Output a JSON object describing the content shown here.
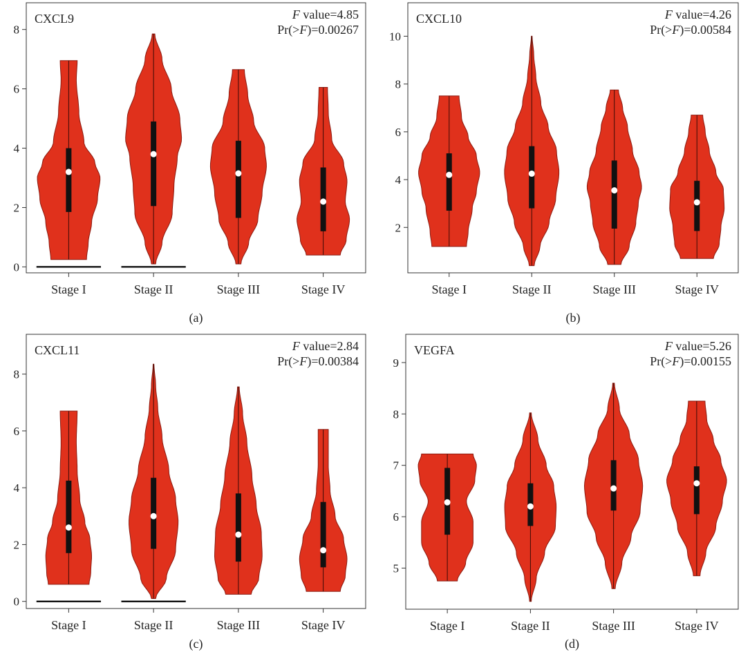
{
  "colors": {
    "violin_fill": "#e0311c",
    "violin_stroke": "#8a1a10",
    "box": "#111111",
    "median": "#ffffff"
  },
  "chart_data": [
    {
      "type": "violin",
      "gene": "CXCL9",
      "f_label": "F",
      "f_text": " value=4.85",
      "p_pre": "Pr(>",
      "p_var": "F",
      "p_post": ")=0.00267",
      "caption": "(a)",
      "categories": [
        "Stage I",
        "Stage II",
        "Stage III",
        "Stage IV"
      ],
      "yticks": [
        0,
        2,
        4,
        6,
        8
      ],
      "ylim": [
        -0.2,
        8.9
      ],
      "zero_lines": [
        true,
        true,
        false,
        false
      ],
      "violins": [
        {
          "min": 0.25,
          "q1": 1.85,
          "median": 3.2,
          "q3": 4.0,
          "max": 6.95,
          "density": [
            [
              0.25,
              0.42
            ],
            [
              0.8,
              0.46
            ],
            [
              1.5,
              0.54
            ],
            [
              2.3,
              0.68
            ],
            [
              3.0,
              0.74
            ],
            [
              3.5,
              0.62
            ],
            [
              4.2,
              0.36
            ],
            [
              5.2,
              0.24
            ],
            [
              6.3,
              0.18
            ],
            [
              6.95,
              0.2
            ]
          ]
        },
        {
          "min": 0.1,
          "q1": 2.05,
          "median": 3.8,
          "q3": 4.9,
          "max": 7.85,
          "density": [
            [
              0.1,
              0.05
            ],
            [
              0.8,
              0.2
            ],
            [
              1.8,
              0.44
            ],
            [
              2.7,
              0.48
            ],
            [
              3.7,
              0.56
            ],
            [
              4.3,
              0.66
            ],
            [
              5.0,
              0.62
            ],
            [
              6.0,
              0.42
            ],
            [
              7.0,
              0.2
            ],
            [
              7.85,
              0.03
            ]
          ]
        },
        {
          "min": 0.1,
          "q1": 1.65,
          "median": 3.15,
          "q3": 4.25,
          "max": 6.65,
          "density": [
            [
              0.1,
              0.06
            ],
            [
              0.8,
              0.24
            ],
            [
              1.6,
              0.46
            ],
            [
              2.5,
              0.56
            ],
            [
              3.4,
              0.66
            ],
            [
              4.0,
              0.62
            ],
            [
              4.9,
              0.36
            ],
            [
              5.8,
              0.22
            ],
            [
              6.65,
              0.14
            ]
          ]
        },
        {
          "min": 0.4,
          "q1": 1.2,
          "median": 2.2,
          "q3": 3.35,
          "max": 6.05,
          "density": [
            [
              0.4,
              0.4
            ],
            [
              0.9,
              0.54
            ],
            [
              1.6,
              0.62
            ],
            [
              2.2,
              0.52
            ],
            [
              2.9,
              0.56
            ],
            [
              3.5,
              0.48
            ],
            [
              4.3,
              0.2
            ],
            [
              5.2,
              0.12
            ],
            [
              6.05,
              0.1
            ]
          ]
        }
      ]
    },
    {
      "type": "violin",
      "gene": "CXCL10",
      "f_label": "F",
      "f_text": " value=4.26",
      "p_pre": "Pr(>",
      "p_var": "F",
      "p_post": ")=0.00584",
      "caption": "(b)",
      "categories": [
        "Stage I",
        "Stage II",
        "Stage III",
        "Stage IV"
      ],
      "yticks": [
        2,
        4,
        6,
        8,
        10
      ],
      "ylim": [
        0.1,
        11.4
      ],
      "zero_lines": [
        false,
        false,
        false,
        false
      ],
      "violins": [
        {
          "min": 1.2,
          "q1": 2.7,
          "median": 4.2,
          "q3": 5.1,
          "max": 7.5,
          "density": [
            [
              1.2,
              0.42
            ],
            [
              1.8,
              0.46
            ],
            [
              2.8,
              0.56
            ],
            [
              3.5,
              0.66
            ],
            [
              4.3,
              0.74
            ],
            [
              5.0,
              0.66
            ],
            [
              5.8,
              0.46
            ],
            [
              6.6,
              0.3
            ],
            [
              7.5,
              0.24
            ]
          ]
        },
        {
          "min": 0.4,
          "q1": 2.8,
          "median": 4.25,
          "q3": 5.4,
          "max": 10.0,
          "density": [
            [
              0.4,
              0.06
            ],
            [
              1.2,
              0.2
            ],
            [
              2.2,
              0.42
            ],
            [
              3.2,
              0.58
            ],
            [
              4.3,
              0.66
            ],
            [
              5.2,
              0.6
            ],
            [
              6.2,
              0.4
            ],
            [
              7.2,
              0.22
            ],
            [
              8.3,
              0.1
            ],
            [
              9.2,
              0.05
            ],
            [
              10.0,
              0.01
            ]
          ]
        },
        {
          "min": 0.45,
          "q1": 1.95,
          "median": 3.55,
          "q3": 4.8,
          "max": 7.75,
          "density": [
            [
              0.45,
              0.16
            ],
            [
              1.2,
              0.36
            ],
            [
              2.2,
              0.52
            ],
            [
              3.0,
              0.58
            ],
            [
              3.7,
              0.66
            ],
            [
              4.3,
              0.6
            ],
            [
              5.2,
              0.44
            ],
            [
              6.2,
              0.32
            ],
            [
              7.0,
              0.2
            ],
            [
              7.75,
              0.1
            ]
          ]
        },
        {
          "min": 0.7,
          "q1": 1.85,
          "median": 3.05,
          "q3": 3.95,
          "max": 6.7,
          "density": [
            [
              0.7,
              0.4
            ],
            [
              1.3,
              0.54
            ],
            [
              2.0,
              0.58
            ],
            [
              2.8,
              0.66
            ],
            [
              3.6,
              0.64
            ],
            [
              4.3,
              0.46
            ],
            [
              5.2,
              0.3
            ],
            [
              6.0,
              0.2
            ],
            [
              6.7,
              0.14
            ]
          ]
        }
      ]
    },
    {
      "type": "violin",
      "gene": "CXCL11",
      "f_label": "F",
      "f_text": " value=2.84",
      "p_pre": "Pr(>",
      "p_var": "F",
      "p_post": ")=0.00384",
      "caption": "(c)",
      "categories": [
        "Stage I",
        "Stage II",
        "Stage III",
        "Stage IV"
      ],
      "yticks": [
        0,
        2,
        4,
        6,
        8
      ],
      "ylim": [
        -0.25,
        9.4
      ],
      "zero_lines": [
        true,
        true,
        false,
        false
      ],
      "violins": [
        {
          "min": 0.6,
          "q1": 1.7,
          "median": 2.6,
          "q3": 4.25,
          "max": 6.7,
          "density": [
            [
              0.6,
              0.48
            ],
            [
              1.0,
              0.52
            ],
            [
              1.6,
              0.54
            ],
            [
              2.2,
              0.5
            ],
            [
              2.8,
              0.38
            ],
            [
              3.6,
              0.26
            ],
            [
              4.6,
              0.2
            ],
            [
              5.6,
              0.18
            ],
            [
              6.7,
              0.2
            ]
          ]
        },
        {
          "min": 0.1,
          "q1": 1.85,
          "median": 3.0,
          "q3": 4.35,
          "max": 8.35,
          "density": [
            [
              0.1,
              0.05
            ],
            [
              0.8,
              0.3
            ],
            [
              1.8,
              0.52
            ],
            [
              2.8,
              0.58
            ],
            [
              3.6,
              0.52
            ],
            [
              4.6,
              0.36
            ],
            [
              5.8,
              0.2
            ],
            [
              6.8,
              0.1
            ],
            [
              7.6,
              0.05
            ],
            [
              8.35,
              0.01
            ]
          ]
        },
        {
          "min": 0.25,
          "q1": 1.4,
          "median": 2.35,
          "q3": 3.8,
          "max": 7.55,
          "density": [
            [
              0.25,
              0.3
            ],
            [
              0.8,
              0.48
            ],
            [
              1.6,
              0.56
            ],
            [
              2.4,
              0.54
            ],
            [
              3.4,
              0.42
            ],
            [
              4.4,
              0.32
            ],
            [
              5.6,
              0.2
            ],
            [
              6.6,
              0.1
            ],
            [
              7.55,
              0.02
            ]
          ]
        },
        {
          "min": 0.35,
          "q1": 1.2,
          "median": 1.8,
          "q3": 3.5,
          "max": 6.05,
          "density": [
            [
              0.35,
              0.4
            ],
            [
              0.9,
              0.52
            ],
            [
              1.5,
              0.56
            ],
            [
              2.2,
              0.48
            ],
            [
              3.0,
              0.28
            ],
            [
              3.9,
              0.16
            ],
            [
              4.8,
              0.12
            ],
            [
              6.05,
              0.12
            ]
          ]
        }
      ]
    },
    {
      "type": "violin",
      "gene": "VEGFA",
      "f_label": "F",
      "f_text": " value=5.26",
      "p_pre": "Pr(>",
      "p_var": "F",
      "p_post": ")=0.00155",
      "caption": "(d)",
      "categories": [
        "Stage I",
        "Stage II",
        "Stage III",
        "Stage IV"
      ],
      "yticks": [
        5,
        6,
        7,
        8,
        9
      ],
      "ylim": [
        4.2,
        9.55
      ],
      "zero_lines": [
        false,
        false,
        false,
        false
      ],
      "violins": [
        {
          "min": 4.75,
          "q1": 5.65,
          "median": 6.28,
          "q3": 6.95,
          "max": 7.22,
          "density": [
            [
              4.75,
              0.24
            ],
            [
              5.1,
              0.44
            ],
            [
              5.5,
              0.62
            ],
            [
              5.9,
              0.62
            ],
            [
              6.3,
              0.46
            ],
            [
              6.7,
              0.66
            ],
            [
              7.0,
              0.7
            ],
            [
              7.22,
              0.62
            ]
          ]
        },
        {
          "min": 4.35,
          "q1": 5.82,
          "median": 6.2,
          "q3": 6.65,
          "max": 8.02,
          "density": [
            [
              4.35,
              0.02
            ],
            [
              4.8,
              0.14
            ],
            [
              5.3,
              0.34
            ],
            [
              5.8,
              0.6
            ],
            [
              6.2,
              0.62
            ],
            [
              6.6,
              0.56
            ],
            [
              7.0,
              0.38
            ],
            [
              7.5,
              0.18
            ],
            [
              8.02,
              0.02
            ]
          ]
        },
        {
          "min": 4.6,
          "q1": 6.12,
          "median": 6.55,
          "q3": 7.1,
          "max": 8.6,
          "density": [
            [
              4.6,
              0.04
            ],
            [
              5.1,
              0.2
            ],
            [
              5.6,
              0.42
            ],
            [
              6.1,
              0.64
            ],
            [
              6.6,
              0.7
            ],
            [
              7.1,
              0.6
            ],
            [
              7.6,
              0.38
            ],
            [
              8.1,
              0.14
            ],
            [
              8.6,
              0.02
            ]
          ]
        },
        {
          "min": 4.85,
          "q1": 6.05,
          "median": 6.65,
          "q3": 6.98,
          "max": 8.25,
          "density": [
            [
              4.85,
              0.08
            ],
            [
              5.3,
              0.22
            ],
            [
              5.8,
              0.46
            ],
            [
              6.3,
              0.62
            ],
            [
              6.7,
              0.72
            ],
            [
              7.1,
              0.58
            ],
            [
              7.5,
              0.4
            ],
            [
              7.9,
              0.24
            ],
            [
              8.25,
              0.2
            ]
          ]
        }
      ]
    }
  ]
}
